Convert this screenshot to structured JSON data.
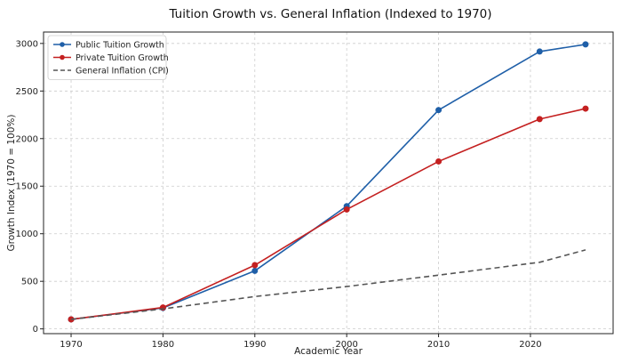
{
  "chart_data": {
    "type": "line",
    "title": "Tuition Growth vs. General Inflation (Indexed to 1970)",
    "xlabel": "Academic Year",
    "ylabel": "Growth Index (1970 = 100%)",
    "xlim": [
      1967,
      2029
    ],
    "ylim": [
      -50,
      3120
    ],
    "xticks": [
      1970,
      1980,
      1990,
      2000,
      2010,
      2020
    ],
    "yticks": [
      0,
      500,
      1000,
      1500,
      2000,
      2500,
      3000
    ],
    "grid": true,
    "legend_position": "top-left",
    "series": [
      {
        "name": "Public Tuition Growth",
        "color": "#1f5fa8",
        "style": "solid",
        "marker": "circle",
        "x": [
          1970,
          1980,
          1990,
          2000,
          2010,
          2021,
          2026
        ],
        "y": [
          100,
          220,
          610,
          1290,
          2300,
          2915,
          2990
        ]
      },
      {
        "name": "Private Tuition Growth",
        "color": "#c42020",
        "style": "solid",
        "marker": "circle",
        "x": [
          1970,
          1980,
          1990,
          2000,
          2010,
          2021,
          2026
        ],
        "y": [
          100,
          225,
          670,
          1255,
          1760,
          2205,
          2315
        ]
      },
      {
        "name": "General Inflation (CPI)",
        "color": "#555555",
        "style": "dashed",
        "marker": "none",
        "x": [
          1970,
          1980,
          1990,
          2000,
          2010,
          2021,
          2026
        ],
        "y": [
          100,
          210,
          340,
          445,
          565,
          700,
          830
        ]
      }
    ]
  }
}
